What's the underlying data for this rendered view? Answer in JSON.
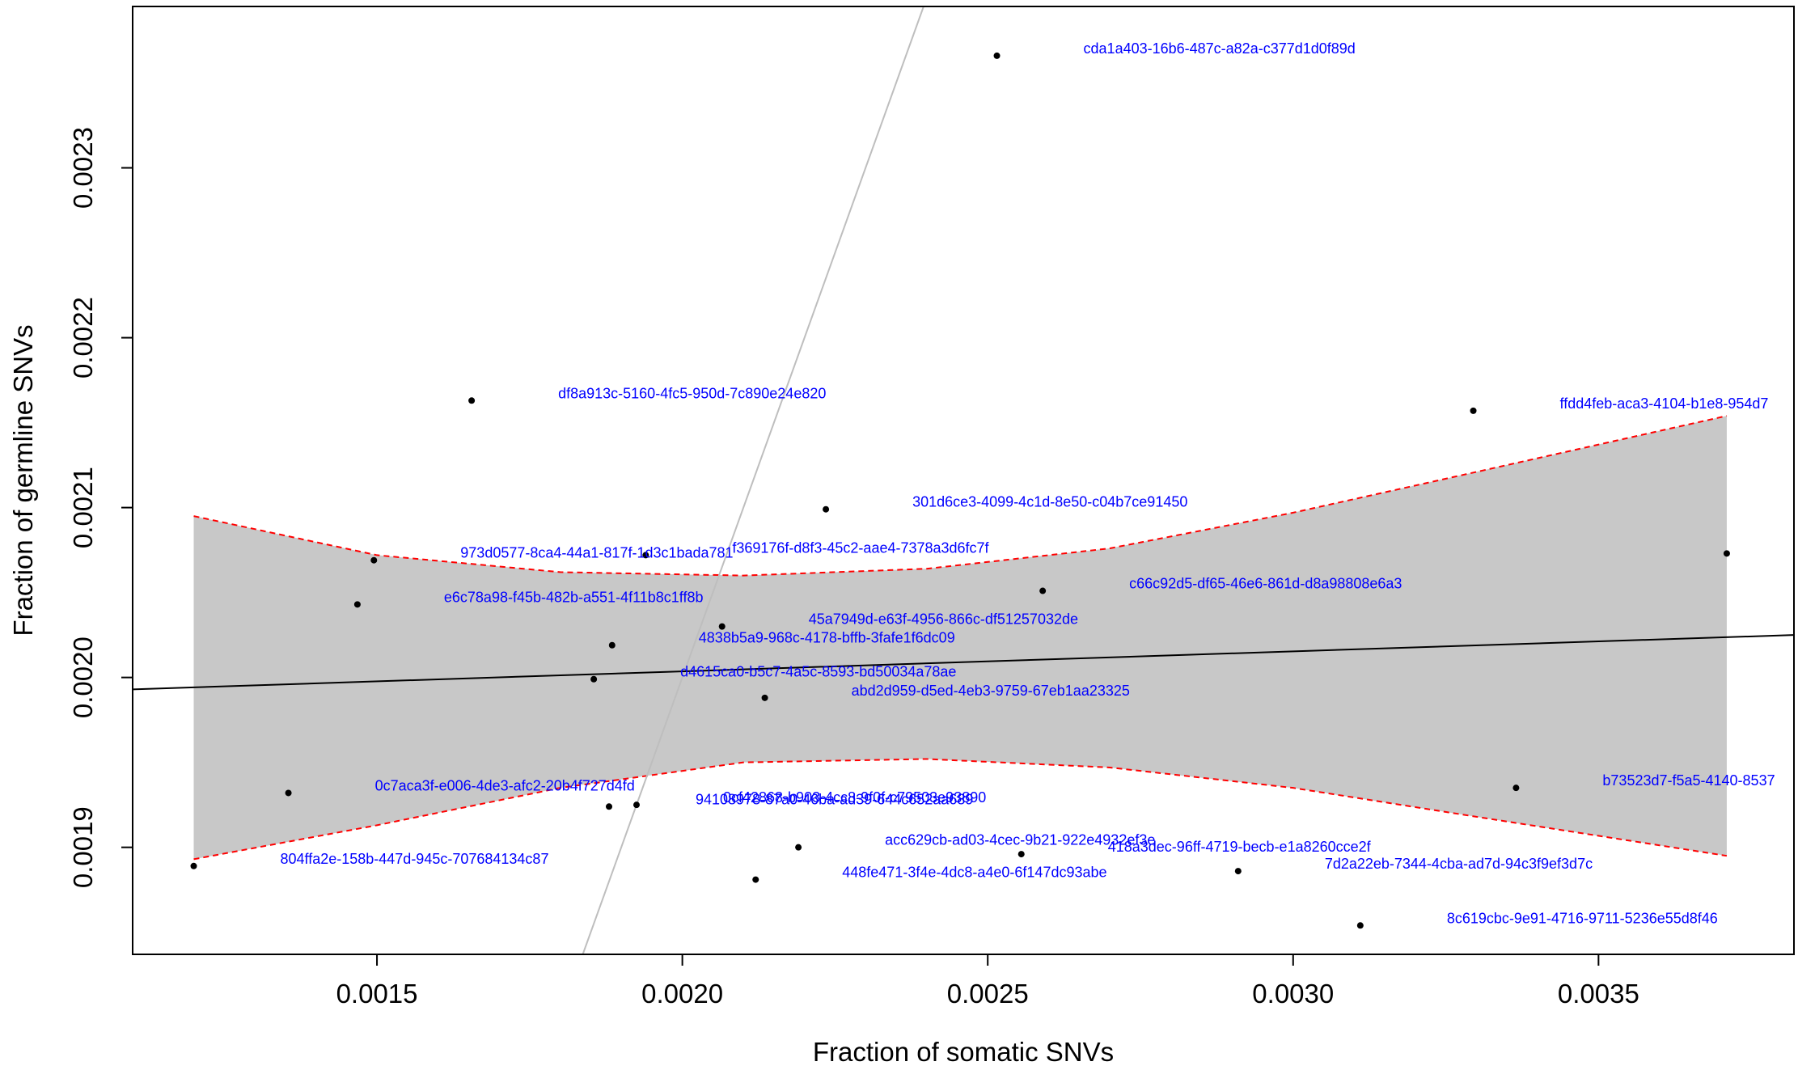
{
  "chart_data": {
    "type": "scatter",
    "title": "",
    "xlabel": "Fraction of somatic SNVs",
    "ylabel": "Fraction of germline SNVs",
    "xlim": [
      0.0011,
      0.00382
    ],
    "ylim": [
      0.001837,
      0.002395
    ],
    "xticks": [
      0.0015,
      0.002,
      0.0025,
      0.003,
      0.0035
    ],
    "xtick_labels": [
      "0.0015",
      "0.0020",
      "0.0025",
      "0.0030",
      "0.0035"
    ],
    "yticks": [
      0.0019,
      0.002,
      0.0021,
      0.0022,
      0.0023
    ],
    "ytick_labels": [
      "0.0019",
      "0.0020",
      "0.0021",
      "0.0022",
      "0.0023"
    ],
    "grid": false,
    "legend": "none",
    "colors": {
      "points": "#000000",
      "labels": "#0000ff",
      "band_fill": "#c8c8c8",
      "band_border": "#ff0000",
      "fit_line": "#000000",
      "identity_line": "#bebebe"
    },
    "points": [
      {
        "x": 0.002515,
        "y": 0.002366,
        "label": "cda1a403-16b6-487c-a82a-c377d1d0f89d"
      },
      {
        "x": 0.001655,
        "y": 0.002163,
        "label": "df8a913c-5160-4fc5-950d-7c890e24e820"
      },
      {
        "x": 0.003295,
        "y": 0.002157,
        "label": "ffdd4feb-aca3-4104-b1e8-954d7"
      },
      {
        "x": 0.002235,
        "y": 0.002099,
        "label": "301d6ce3-4099-4c1d-8e50-c04b7ce91450"
      },
      {
        "x": 0.001495,
        "y": 0.002069,
        "label": "973d0577-8ca4-44a1-817f-1d3c1bada781"
      },
      {
        "x": 0.00194,
        "y": 0.002072,
        "label": "f369176f-d8f3-45c2-aae4-7378a3d6fc7f"
      },
      {
        "x": 0.00371,
        "y": 0.002073,
        "label": ""
      },
      {
        "x": 0.001468,
        "y": 0.002043,
        "label": "e6c78a98-f45b-482b-a551-4f11b8c1ff8b"
      },
      {
        "x": 0.00259,
        "y": 0.002051,
        "label": "c66c92d5-df65-46e6-861d-d8a98808e6a3"
      },
      {
        "x": 0.002065,
        "y": 0.00203,
        "label": "45a7949d-e63f-4956-866c-df51257032de"
      },
      {
        "x": 0.001885,
        "y": 0.002019,
        "label": "4838b5a9-968c-4178-bffb-3fafe1f6dc09"
      },
      {
        "x": 0.001855,
        "y": 0.001999,
        "label": "d4615ca0-b5c7-4a5c-8593-bd50034a78ae"
      },
      {
        "x": 0.002135,
        "y": 0.001988,
        "label": "abd2d959-d5ed-4eb3-9759-67eb1aa23325"
      },
      {
        "x": 0.003365,
        "y": 0.001935,
        "label": "b73523d7-f5a5-4140-8537"
      },
      {
        "x": 0.001355,
        "y": 0.001932,
        "label": "0c7aca3f-e006-4de3-afc2-20b4f727d4fd"
      },
      {
        "x": 0.00188,
        "y": 0.001924,
        "label": "94108978-87a0-46ba-ad39-644c652aa689"
      },
      {
        "x": 0.001925,
        "y": 0.001925,
        "label": "0cf42868-b903-4cc8-9f0f-c79503e93890"
      },
      {
        "x": 0.00219,
        "y": 0.0019,
        "label": "acc629cb-ad03-4cec-9b21-922e4932ef3e"
      },
      {
        "x": 0.002555,
        "y": 0.001896,
        "label": "418a3dec-96ff-4719-becb-e1a8260cce2f"
      },
      {
        "x": 0.00291,
        "y": 0.001886,
        "label": "7d2a22eb-7344-4cba-ad7d-94c3f9ef3d7c"
      },
      {
        "x": 0.00212,
        "y": 0.001881,
        "label": "448fe471-3f4e-4dc8-a4e0-6f147dc93abe"
      },
      {
        "x": 0.0012,
        "y": 0.001889,
        "label": "804ffa2e-158b-447d-945c-707684134c87"
      },
      {
        "x": 0.00311,
        "y": 0.001854,
        "label": "8c619cbc-9e91-4716-9711-5236e55d8f46"
      }
    ],
    "fit_line": {
      "x": [
        0.0011,
        0.00382
      ],
      "y": [
        0.001993,
        0.002025
      ]
    },
    "identity_line": {
      "x": [
        0.001837,
        0.002395
      ],
      "y": [
        0.001837,
        0.002395
      ]
    },
    "confidence_band": {
      "x": [
        0.0012,
        0.0015,
        0.0018,
        0.0021,
        0.0024,
        0.0027,
        0.003,
        0.0033,
        0.00371
      ],
      "upper": [
        0.002095,
        0.002072,
        0.002062,
        0.00206,
        0.002064,
        0.002076,
        0.002097,
        0.002121,
        0.002154
      ],
      "lower": [
        0.001893,
        0.001913,
        0.001935,
        0.00195,
        0.001952,
        0.001947,
        0.001935,
        0.001918,
        0.001895
      ]
    }
  }
}
